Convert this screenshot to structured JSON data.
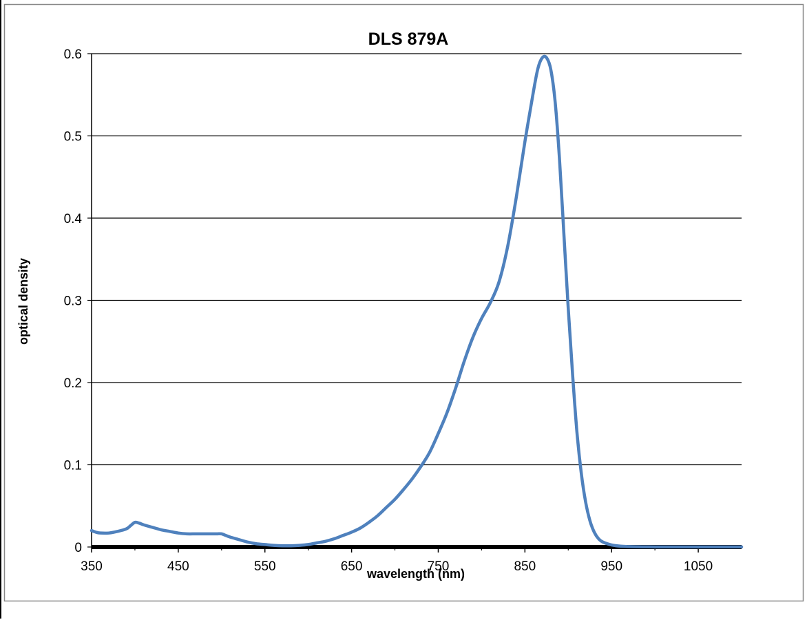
{
  "chart_data": {
    "type": "line",
    "title": "DLS 879A",
    "xlabel": "wavelength (nm)",
    "ylabel": "optical density",
    "xlim": [
      350,
      1100
    ],
    "ylim": [
      0,
      0.6
    ],
    "x_ticks": [
      "350",
      "450",
      "550",
      "650",
      "750",
      "850",
      "950",
      "1050"
    ],
    "y_ticks": [
      "0",
      "0.1",
      "0.2",
      "0.3",
      "0.4",
      "0.5",
      "0.6"
    ],
    "grid": "horizontal",
    "legend": "none",
    "series": [
      {
        "color": "#4f81bd",
        "x": [
          350,
          355,
          360,
          370,
          380,
          390,
          395,
          400,
          405,
          410,
          420,
          430,
          440,
          450,
          460,
          470,
          480,
          490,
          495,
          500,
          505,
          510,
          520,
          530,
          540,
          550,
          560,
          570,
          580,
          590,
          600,
          610,
          620,
          630,
          640,
          650,
          660,
          670,
          680,
          690,
          700,
          710,
          720,
          730,
          740,
          750,
          760,
          770,
          780,
          790,
          800,
          810,
          820,
          830,
          840,
          850,
          860,
          865,
          870,
          875,
          880,
          885,
          890,
          895,
          900,
          905,
          910,
          915,
          920,
          925,
          930,
          935,
          940,
          950,
          960,
          970,
          980,
          990,
          1000,
          1020,
          1050,
          1080,
          1100
        ],
        "y": [
          0.02,
          0.018,
          0.017,
          0.017,
          0.019,
          0.022,
          0.026,
          0.03,
          0.029,
          0.027,
          0.024,
          0.021,
          0.019,
          0.017,
          0.016,
          0.016,
          0.016,
          0.016,
          0.016,
          0.016,
          0.014,
          0.012,
          0.009,
          0.006,
          0.004,
          0.003,
          0.002,
          0.0015,
          0.0015,
          0.002,
          0.003,
          0.005,
          0.007,
          0.01,
          0.014,
          0.018,
          0.023,
          0.03,
          0.038,
          0.048,
          0.058,
          0.07,
          0.083,
          0.098,
          0.115,
          0.138,
          0.163,
          0.193,
          0.226,
          0.255,
          0.278,
          0.297,
          0.322,
          0.365,
          0.425,
          0.493,
          0.555,
          0.582,
          0.595,
          0.595,
          0.58,
          0.54,
          0.47,
          0.38,
          0.29,
          0.21,
          0.14,
          0.09,
          0.055,
          0.032,
          0.018,
          0.01,
          0.006,
          0.0025,
          0.001,
          0.0005,
          0.0003,
          0.0002,
          0.0001,
          0.0001,
          0.0001,
          0.0001,
          0.0001
        ]
      }
    ]
  }
}
